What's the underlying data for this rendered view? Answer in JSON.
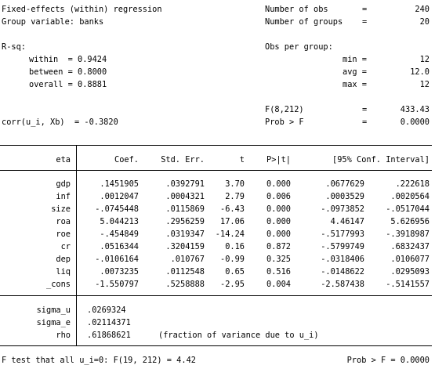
{
  "header": {
    "title": "Fixed-effects (within) regression",
    "group_var": "Group variable: banks",
    "nobs_label": "Number of obs",
    "nobs_value": "240",
    "ngroups_label": "Number of groups",
    "ngroups_value": "20",
    "rsq_label": "R-sq:",
    "within": "within  = 0.9424",
    "between": "between = 0.8000",
    "overall": "overall = 0.8881",
    "obs_per_group_label": "Obs per group:",
    "min_label": "min =",
    "min_value": "12",
    "avg_label": "avg =",
    "avg_value": "12.0",
    "max_label": "max =",
    "max_value": "12",
    "f_label": "F(8,212)",
    "f_value": "433.43",
    "probf_label": "Prob > F",
    "probf_value": "0.0000",
    "corr": "corr(u_i, Xb)  = -0.3820",
    "eq": "="
  },
  "table": {
    "depvar": "eta",
    "columns": [
      "Coef.",
      "Std. Err.",
      "t",
      "P>|t|",
      "[95% Conf. Interval]"
    ],
    "rows": [
      {
        "var": "gdp",
        "coef": ".1451905",
        "se": ".0392791",
        "t": "3.70",
        "p": "0.000",
        "lo": ".0677629",
        "hi": ".222618"
      },
      {
        "var": "inf",
        "coef": ".0012047",
        "se": ".0004321",
        "t": "2.79",
        "p": "0.006",
        "lo": ".0003529",
        "hi": ".0020564"
      },
      {
        "var": "size",
        "coef": "-.0745448",
        "se": ".0115869",
        "t": "-6.43",
        "p": "0.000",
        "lo": "-.0973852",
        "hi": "-.0517044"
      },
      {
        "var": "roa",
        "coef": "5.044213",
        "se": ".2956259",
        "t": "17.06",
        "p": "0.000",
        "lo": "4.46147",
        "hi": "5.626956"
      },
      {
        "var": "roe",
        "coef": "-.454849",
        "se": ".0319347",
        "t": "-14.24",
        "p": "0.000",
        "lo": "-.5177993",
        "hi": "-.3918987"
      },
      {
        "var": "cr",
        "coef": ".0516344",
        "se": ".3204159",
        "t": "0.16",
        "p": "0.872",
        "lo": "-.5799749",
        "hi": ".6832437"
      },
      {
        "var": "dep",
        "coef": "-.0106164",
        "se": ".010767",
        "t": "-0.99",
        "p": "0.325",
        "lo": "-.0318406",
        "hi": ".0106077"
      },
      {
        "var": "liq",
        "coef": ".0073235",
        "se": ".0112548",
        "t": "0.65",
        "p": "0.516",
        "lo": "-.0148622",
        "hi": ".0295093"
      },
      {
        "var": "_cons",
        "coef": "-1.550797",
        "se": ".5258888",
        "t": "-2.95",
        "p": "0.004",
        "lo": "-2.587438",
        "hi": "-.5141557"
      }
    ],
    "sigma": [
      {
        "var": "sigma_u",
        "value": ".0269324"
      },
      {
        "var": "sigma_e",
        "value": ".02114371"
      },
      {
        "var": "rho",
        "value": ".61868621"
      }
    ],
    "rho_note": "(fraction of variance due to u_i)"
  },
  "footer": {
    "ftest": "F test that all u_i=0: F(19, 212) = 4.42",
    "prob": "Prob > F = 0.0000"
  }
}
